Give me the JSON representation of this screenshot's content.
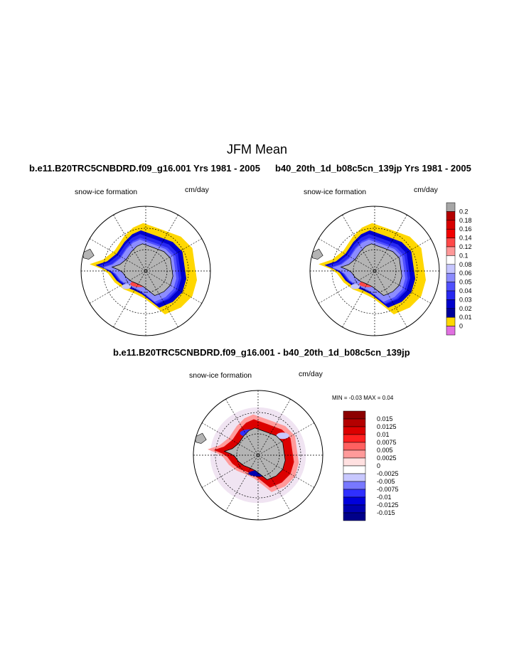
{
  "header": {
    "title": "JFM Mean"
  },
  "panels": [
    {
      "case": "b.e11.B20TRC5CNBDRD.f09_g16.001  Yrs 1981 - 2005",
      "variable": "snow-ice formation",
      "units": "cm/day"
    },
    {
      "case": "b40_20th_1d_b08c5cn_139jp  Yrs 1981 - 2005",
      "variable": "snow-ice formation",
      "units": "cm/day"
    },
    {
      "case": "b.e11.B20TRC5CNBDRD.f09_g16.001 - b40_20th_1d_b08c5cn_139jp",
      "variable": "snow-ice formation",
      "units": "cm/day",
      "minmax": "MIN =   -0.03  MAX =    0.04"
    }
  ],
  "colors": {
    "land": "#b4b4b4",
    "ocean": "#ffffff",
    "grid": "#000000"
  },
  "chart_data": [
    {
      "type": "heatmap",
      "projection": "south polar stereographic",
      "title": "snow-ice formation",
      "units": "cm/day",
      "legend": {
        "labels": [
          "0.2",
          "0.18",
          "0.16",
          "0.14",
          "0.12",
          "0.1",
          "0.08",
          "0.06",
          "0.05",
          "0.04",
          "0.03",
          "0.02",
          "0.01",
          "0"
        ],
        "colors": [
          "#a6a6a6",
          "#b40000",
          "#d80000",
          "#f20000",
          "#ff4848",
          "#ff9898",
          "#ffffff",
          "#c6c6ff",
          "#8c8cff",
          "#5050ff",
          "#2828f0",
          "#0000cc",
          "#00009a",
          "#ffd700",
          "#e070e0"
        ]
      }
    },
    {
      "type": "heatmap",
      "projection": "south polar stereographic",
      "title": "snow-ice formation",
      "units": "cm/day",
      "legend": {
        "labels": [
          "0.2",
          "0.18",
          "0.16",
          "0.14",
          "0.12",
          "0.1",
          "0.08",
          "0.06",
          "0.05",
          "0.04",
          "0.03",
          "0.02",
          "0.01",
          "0"
        ],
        "colors": [
          "#a6a6a6",
          "#b40000",
          "#d80000",
          "#f20000",
          "#ff4848",
          "#ff9898",
          "#ffffff",
          "#c6c6ff",
          "#8c8cff",
          "#5050ff",
          "#2828f0",
          "#0000cc",
          "#00009a",
          "#ffd700",
          "#e070e0"
        ]
      }
    },
    {
      "type": "heatmap",
      "projection": "south polar stereographic",
      "title": "snow-ice formation",
      "units": "cm/day",
      "min": -0.03,
      "max": 0.04,
      "legend": {
        "labels": [
          "0.015",
          "0.0125",
          "0.01",
          "0.0075",
          "0.005",
          "0.0025",
          "0",
          "-0.0025",
          "-0.005",
          "-0.0075",
          "-0.01",
          "-0.0125",
          "-0.015"
        ],
        "colors": [
          "#8c0000",
          "#b40000",
          "#dc0000",
          "#ff2020",
          "#ff6060",
          "#ff9a9a",
          "#ffe0e0",
          "#ffffff",
          "#c8c8ff",
          "#7878ff",
          "#3030ff",
          "#0000dc",
          "#0000b0",
          "#00008a"
        ]
      }
    }
  ]
}
